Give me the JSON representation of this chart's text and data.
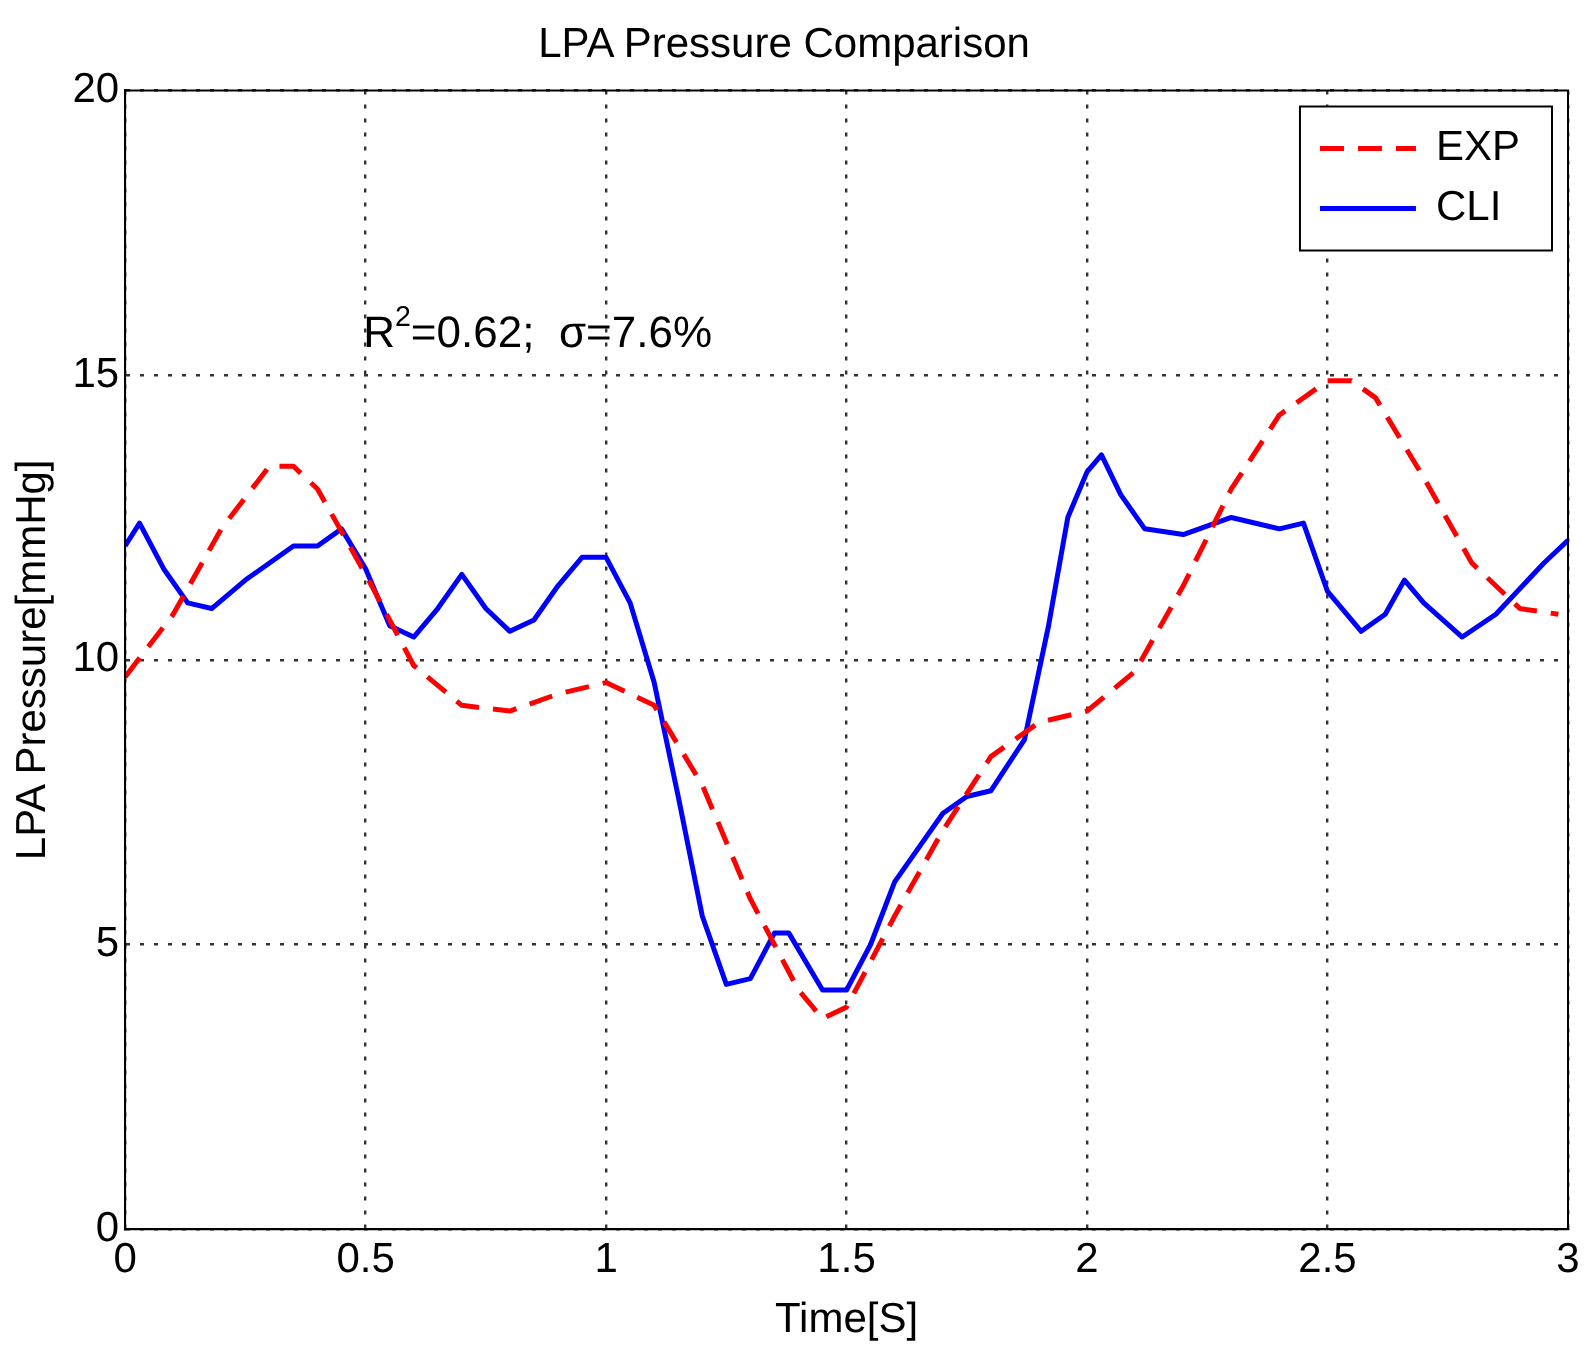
{
  "chart_data": {
    "type": "line",
    "title": "LPA Pressure Comparison",
    "xlabel": "Time[S]",
    "ylabel": "LPA Pressure[mmHg]",
    "annotations": [
      "R$^{2}$=0.62;  σ=7.6%"
    ],
    "xlim": [
      0,
      3
    ],
    "xticks": [
      0,
      0.5,
      1,
      1.5,
      2,
      2.5,
      3
    ],
    "ylim": [
      0,
      20
    ],
    "yticks": [
      0,
      5,
      10,
      15,
      20
    ],
    "grid": true,
    "legend": "top right",
    "marker": "none",
    "series": [
      {
        "name": "EXP",
        "color": "#ff0000",
        "line_style": "dashed",
        "x": [
          0,
          0.1,
          0.2,
          0.3,
          0.35,
          0.4,
          0.5,
          0.6,
          0.7,
          0.8,
          0.9,
          1.0,
          1.1,
          1.2,
          1.3,
          1.4,
          1.45,
          1.5,
          1.6,
          1.7,
          1.8,
          1.9,
          2.0,
          2.1,
          2.2,
          2.3,
          2.4,
          2.5,
          2.55,
          2.6,
          2.7,
          2.8,
          2.9,
          2.98
        ],
        "values": [
          9.7,
          10.8,
          12.3,
          13.4,
          13.4,
          13.0,
          11.5,
          9.9,
          9.2,
          9.1,
          9.4,
          9.6,
          9.2,
          7.8,
          5.8,
          4.2,
          3.7,
          3.9,
          5.5,
          7.0,
          8.3,
          8.9,
          9.1,
          9.8,
          11.3,
          13.0,
          14.3,
          14.9,
          14.9,
          14.6,
          13.2,
          11.7,
          10.9,
          10.8
        ]
      },
      {
        "name": "CLI",
        "color": "#0000ff",
        "line_style": "solid",
        "x": [
          0,
          0.03,
          0.08,
          0.13,
          0.18,
          0.25,
          0.35,
          0.4,
          0.45,
          0.5,
          0.55,
          0.6,
          0.65,
          0.7,
          0.75,
          0.8,
          0.85,
          0.9,
          0.95,
          1.0,
          1.05,
          1.1,
          1.15,
          1.2,
          1.25,
          1.3,
          1.35,
          1.38,
          1.45,
          1.5,
          1.55,
          1.6,
          1.7,
          1.75,
          1.8,
          1.87,
          1.92,
          1.96,
          2.0,
          2.03,
          2.07,
          2.12,
          2.2,
          2.3,
          2.4,
          2.45,
          2.5,
          2.57,
          2.62,
          2.66,
          2.7,
          2.78,
          2.85,
          2.95,
          3.0
        ],
        "values": [
          12.0,
          12.4,
          11.6,
          11.0,
          10.9,
          11.4,
          12.0,
          12.0,
          12.3,
          11.6,
          10.6,
          10.4,
          10.9,
          11.5,
          10.9,
          10.5,
          10.7,
          11.3,
          11.8,
          11.8,
          11.0,
          9.6,
          7.6,
          5.5,
          4.3,
          4.4,
          5.2,
          5.2,
          4.2,
          4.2,
          5.0,
          6.1,
          7.3,
          7.6,
          7.7,
          8.6,
          10.6,
          12.5,
          13.3,
          13.6,
          12.9,
          12.3,
          12.2,
          12.5,
          12.3,
          12.4,
          11.2,
          10.5,
          10.8,
          11.4,
          11.0,
          10.4,
          10.8,
          11.7,
          12.1
        ]
      }
    ]
  }
}
